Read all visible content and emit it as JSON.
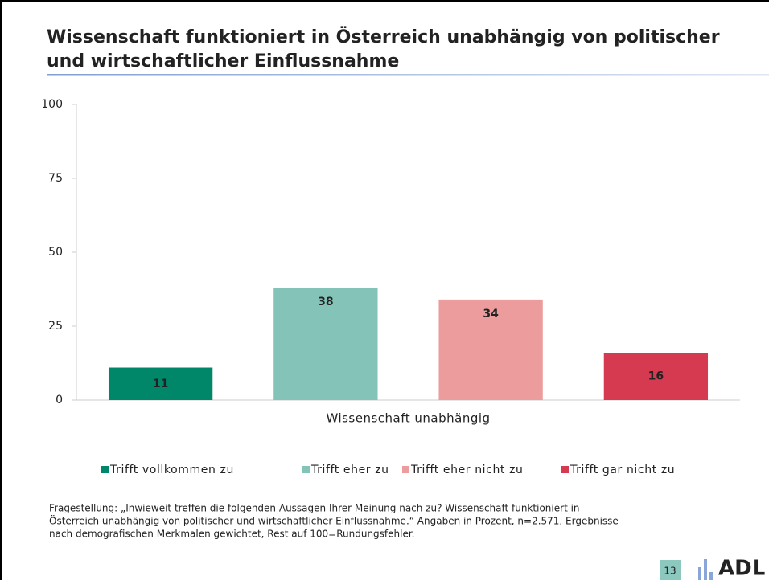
{
  "chart_data": {
    "type": "bar",
    "title": [
      "Wissenschaft funktioniert in Österreich unabhängig von politischer",
      "und wirtschaftlicher Einflussnahme"
    ],
    "categories": [
      "Wissenschaft unabhängig"
    ],
    "series": [
      {
        "name": "Trifft vollkommen zu",
        "color": "#00876a",
        "values": [
          11
        ]
      },
      {
        "name": "Trifft eher zu",
        "color": "#84c3b7",
        "values": [
          38
        ]
      },
      {
        "name": "Trifft eher nicht zu",
        "color": "#ec9c9d",
        "values": [
          34
        ]
      },
      {
        "name": "Trifft gar nicht zu",
        "color": "#d63a50",
        "values": [
          16
        ]
      }
    ],
    "ylim": [
      0,
      100
    ],
    "yticks": [
      0,
      25,
      50,
      75,
      100
    ],
    "grid": false,
    "legend": "bottom",
    "footnote": [
      "Fragestellung: „Inwieweit treffen die folgenden Aussagen Ihrer Meinung nach zu? Wissenschaft funktioniert in",
      "Österreich unabhängig von politischer und wirtschaftlicher Einflussnahme.“ Angaben in Prozent, n=2.571, Ergebnisse",
      "nach demografischen Merkmalen gewichtet, Rest auf 100=Rundungsfehler."
    ],
    "page_number": "13",
    "logo": "ADL"
  }
}
